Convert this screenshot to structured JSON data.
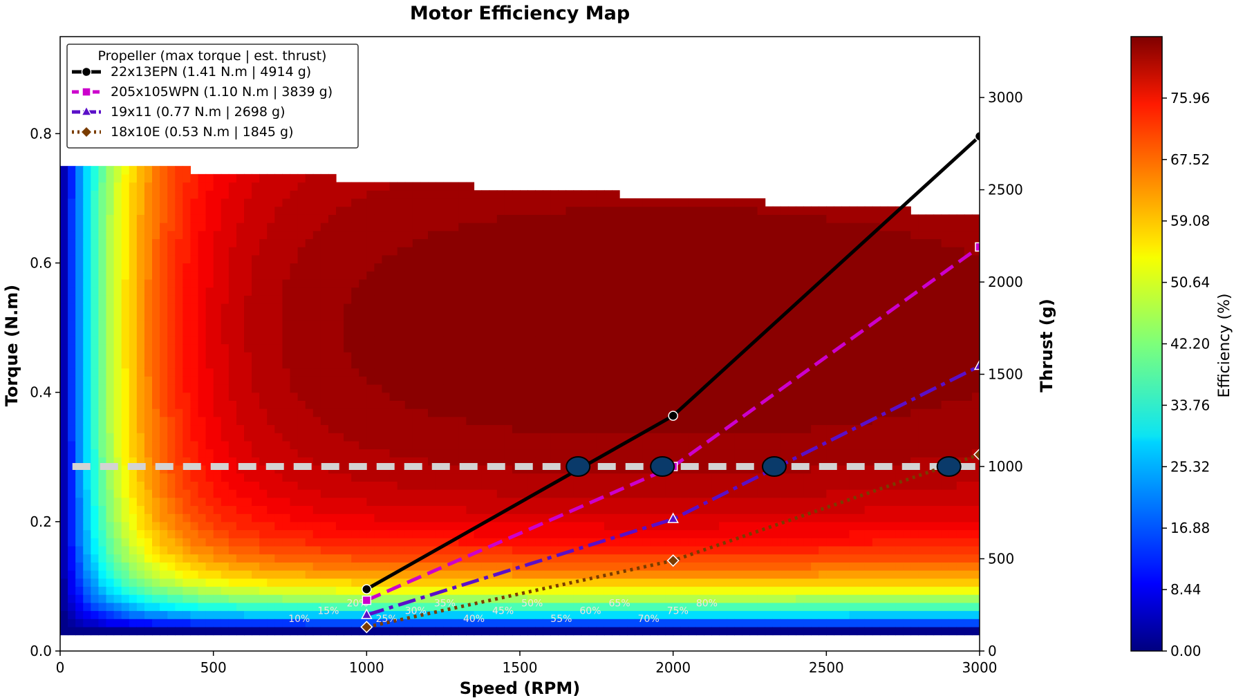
{
  "chart_data": {
    "type": "heatmap",
    "title": "Motor Efficiency Map",
    "xlabel": "Speed (RPM)",
    "ylabel": "Torque (N.m)",
    "y2label": "Thrust (g)",
    "colorbar_label": "Efficiency (%)",
    "xlim": [
      0,
      3000
    ],
    "ylim": [
      0,
      0.95
    ],
    "y2lim": [
      0,
      3330
    ],
    "x_ticks": [
      "0",
      "500",
      "1000",
      "1500",
      "2000",
      "2500",
      "3000"
    ],
    "y_ticks": [
      "0.0",
      "0.2",
      "0.4",
      "0.6",
      "0.8"
    ],
    "y2_ticks": [
      "0",
      "500",
      "1000",
      "1500",
      "2000",
      "2500",
      "3000"
    ],
    "colorbar_ticks": [
      "0.00",
      "8.44",
      "16.88",
      "25.32",
      "33.76",
      "42.20",
      "50.64",
      "59.08",
      "67.52",
      "75.96"
    ],
    "colorbar_range": [
      0,
      84.4
    ],
    "colormap": "jet",
    "contour_labels": [
      "10%",
      "15%",
      "20%",
      "25%",
      "30%",
      "35%",
      "40%",
      "45%",
      "50%",
      "55%",
      "60%",
      "65%",
      "70%",
      "75%",
      "80%"
    ],
    "legend": {
      "title": "Propeller  (max torque | est. thrust)",
      "position": "upper-left"
    },
    "series": [
      {
        "name": "22x13EPN  (1.41 N.m  |  4914 g)",
        "color": "#000000",
        "marker": "circle",
        "dash": "solid",
        "x": [
          1000,
          2000,
          3000
        ],
        "thrust": [
          335,
          1275,
          2790
        ]
      },
      {
        "name": "205x105WPN  (1.10 N.m  |  3839 g)",
        "color": "#cc00cc",
        "marker": "square",
        "dash": "dashed",
        "x": [
          1000,
          2000,
          3000
        ],
        "thrust": [
          275,
          1000,
          2190
        ]
      },
      {
        "name": "19x11  (0.77 N.m  |  2698 g)",
        "color": "#5a0fc8",
        "marker": "triangle",
        "dash": "dashdot",
        "x": [
          1000,
          2000,
          3000
        ],
        "thrust": [
          195,
          715,
          1545
        ]
      },
      {
        "name": "18x10E  (0.53 N.m  |  1845 g)",
        "color": "#7a3c00",
        "marker": "diamond",
        "dash": "dotted",
        "x": [
          1000,
          2000,
          3000
        ],
        "thrust": [
          130,
          490,
          1065
        ]
      }
    ],
    "reference_line": {
      "thrust": 1000,
      "color": "#d3d3d3"
    },
    "intersections": {
      "x": [
        1690,
        1965,
        2330,
        2900
      ],
      "thrust": 1000,
      "color": "#0a3a6a"
    },
    "efficiency_field": {
      "peak_x": 1950,
      "peak_torque": 0.5,
      "x_spread": 2000,
      "torque_spread": 0.45,
      "max_torque_at_0": 0.755,
      "max_torque_at_3000": 0.675,
      "min_torque": 0.03
    }
  }
}
